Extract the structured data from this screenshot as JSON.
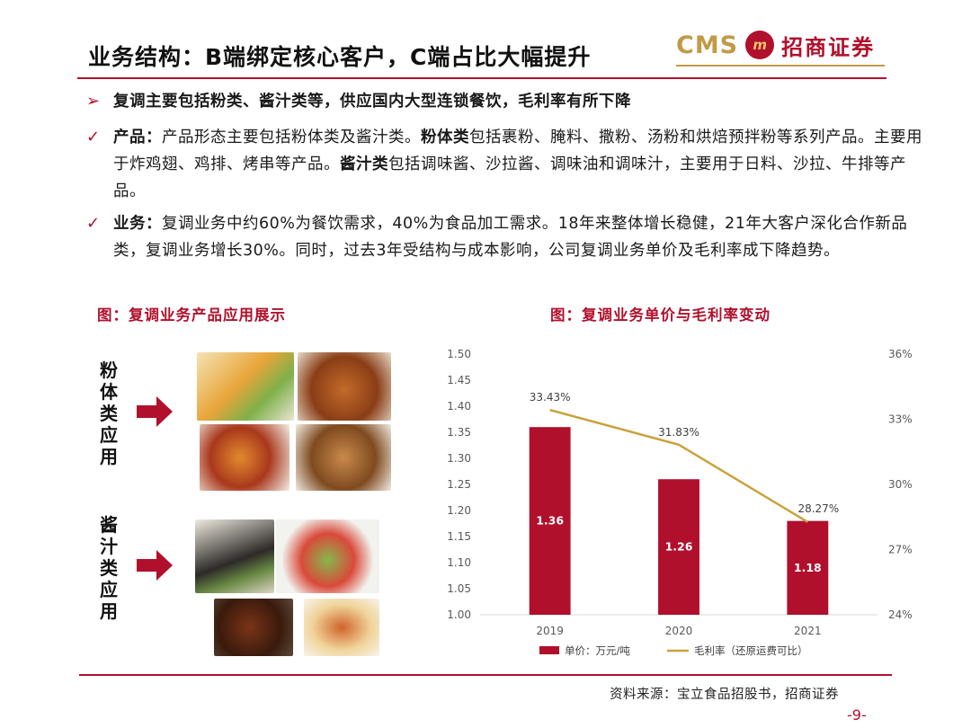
{
  "header": {
    "title": "业务结构：B端绑定核心客户，C端占比大幅提升",
    "logo": {
      "cms": "CMS",
      "mark": "m",
      "name": "招商证券"
    }
  },
  "bullets": {
    "b1": {
      "mark": "➢",
      "text": "复调主要包括粉类、酱汁类等，供应国内大型连锁餐饮，毛利率有所下降"
    },
    "b2": {
      "mark": "✓",
      "label": "产品：",
      "t1": "产品形态主要包括粉体类及酱汁类。",
      "k1": "粉体类",
      "t2": "包括裹粉、腌料、撒粉、汤粉和烘焙预拌粉等系列产品。主要用于炸鸡翅、鸡排、烤串等产品。",
      "k2": "酱汁类",
      "t3": "包括调味酱、沙拉酱、调味油和调味汁，主要用于日料、沙拉、牛排等产品。"
    },
    "b3": {
      "mark": "✓",
      "label": "业务：",
      "text": "复调业务中约60%为餐饮需求，40%为食品加工需求。18年来整体增长稳健，21年大客户深化合作新品类，复调业务增长30%。同时，过去3年受结构与成本影响，公司复调业务单价及毛利率成下降趋势。"
    }
  },
  "left_panel": {
    "caption": "图：复调业务产品应用展示",
    "powder_label": "粉体类应用",
    "sauce_label": "酱汁类应用",
    "icons": [
      "arrow-right-icon",
      "arrow-right-icon"
    ]
  },
  "right_panel": {
    "caption": "图：复调业务单价与毛利率变动"
  },
  "chart_data": {
    "type": "bar",
    "categories": [
      "2019",
      "2020",
      "2021"
    ],
    "series": [
      {
        "name": "单价：万元/吨",
        "type": "bar",
        "axis": "left",
        "values": [
          1.36,
          1.26,
          1.18
        ],
        "labels": [
          "1.36",
          "1.26",
          "1.18"
        ],
        "color": "#b0102c"
      },
      {
        "name": "毛利率（还原运费可比）",
        "type": "line",
        "axis": "right",
        "values": [
          33.43,
          31.83,
          28.27
        ],
        "labels": [
          "33.43%",
          "31.83%",
          "28.27%"
        ],
        "color": "#c9a23c"
      }
    ],
    "y_left": {
      "range": [
        1.0,
        1.5
      ],
      "ticks": [
        "1.00",
        "1.05",
        "1.10",
        "1.15",
        "1.20",
        "1.25",
        "1.30",
        "1.35",
        "1.40",
        "1.45",
        "1.50"
      ]
    },
    "y_right": {
      "range": [
        24,
        36
      ],
      "ticks": [
        "24%",
        "27%",
        "30%",
        "33%",
        "36%"
      ]
    },
    "grid": false,
    "legend": "bottom"
  },
  "footer": {
    "source": "资料来源：宝立食品招股书，招商证券",
    "page": "-9-"
  }
}
